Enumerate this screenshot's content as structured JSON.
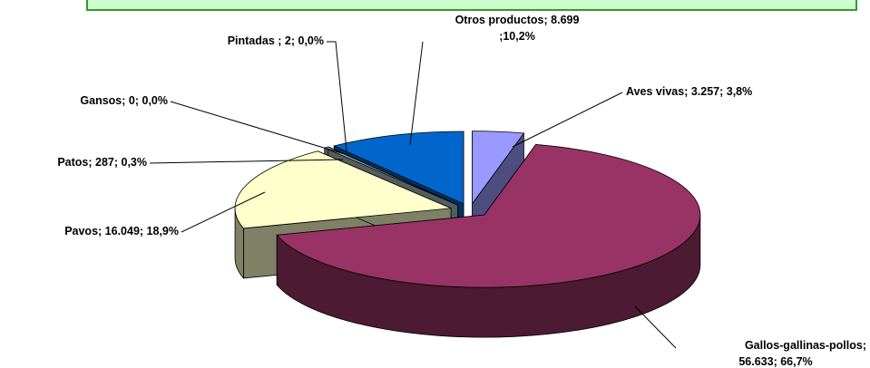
{
  "chart_data": {
    "type": "pie",
    "categories": [
      "Aves vivas",
      "Gallos-gallinas-pollos",
      "Pavos",
      "Patos",
      "Gansos",
      "Pintadas ",
      "Otros productos"
    ],
    "values": [
      3257,
      56633,
      16049,
      287,
      0,
      2,
      8699
    ],
    "value_labels": [
      "3.257",
      "56.633",
      "16.049",
      "287",
      "0",
      "2",
      "8.699"
    ],
    "percents": [
      3.8,
      66.7,
      18.9,
      0.3,
      0.0,
      0.0,
      10.2
    ],
    "percent_labels": [
      "3,8%",
      "66,7%",
      "18,9%",
      "0,3%",
      "0,0%",
      "0,0%",
      "10,2%"
    ],
    "label_separator": "; ",
    "colors": [
      "#9999ff",
      "#993366",
      "#ffffcc",
      "#a3baba",
      "#660066",
      "#ff8080",
      "#0066cc"
    ]
  }
}
